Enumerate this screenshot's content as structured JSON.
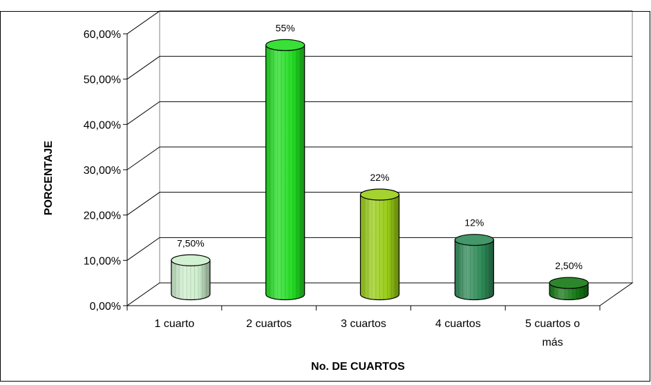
{
  "chart_data": {
    "type": "bar",
    "title": "",
    "xlabel": "No. DE CUARTOS",
    "ylabel": "PORCENTAJE",
    "categories": [
      [
        "1 cuarto"
      ],
      [
        "2 cuartos"
      ],
      [
        "3 cuartos"
      ],
      [
        "4 cuartos"
      ],
      [
        "5 cuartos o",
        "más"
      ]
    ],
    "values": [
      7.5,
      55,
      22,
      12,
      2.5
    ],
    "data_labels": [
      "7,50%",
      "55%",
      "22%",
      "12%",
      "2,50%"
    ],
    "y_ticks": [
      "0,00%",
      "10,00%",
      "20,00%",
      "30,00%",
      "40,00%",
      "50,00%",
      "60,00%"
    ],
    "ylim": [
      0,
      60
    ],
    "grid": true,
    "legend": "none",
    "bar_shape": "3d-cylinder",
    "bar_colors": [
      "#cdeecd",
      "#22dd22",
      "#9acd17",
      "#2e8b57",
      "#157a15"
    ]
  }
}
